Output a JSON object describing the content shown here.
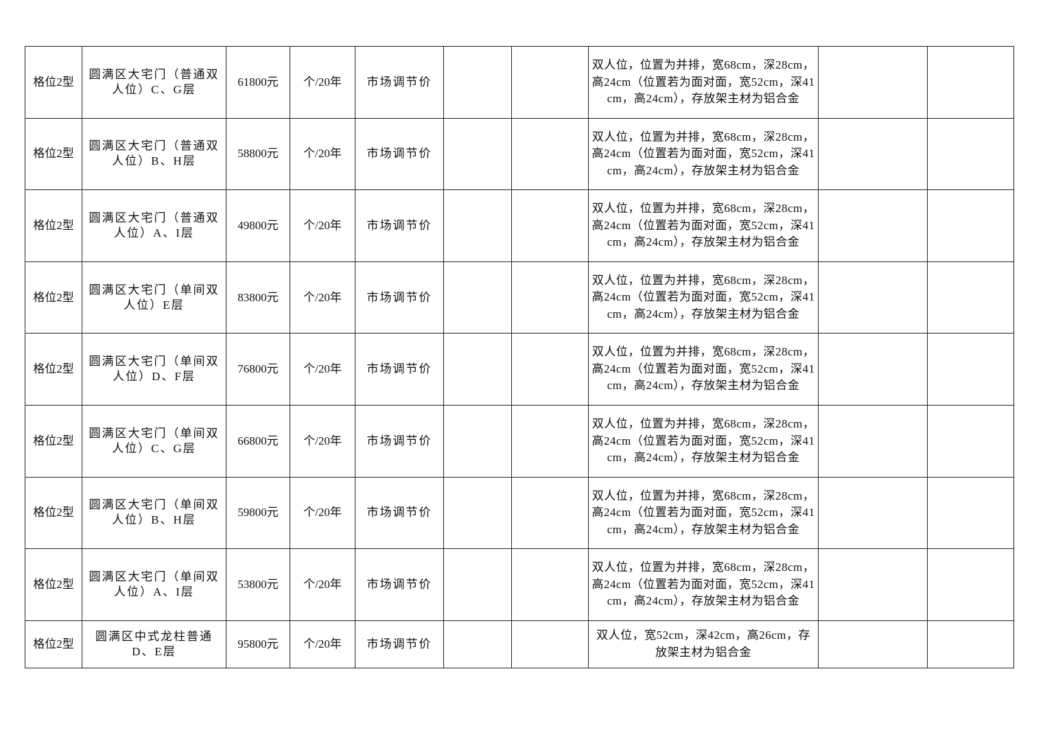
{
  "table": {
    "rows": [
      {
        "type": "格位2型",
        "name": "圆满区大宅门（普通双人位）C、G层",
        "price": "61800元",
        "unit": "个/20年",
        "pricing": "市场调节价",
        "c6": "",
        "c7": "",
        "desc": "双人位，位置为并排，宽68cm，深28cm，高24cm（位置若为面对面，宽52cm，深41cm，高24cm），存放架主材为铝合金",
        "c9": "",
        "c10": ""
      },
      {
        "type": "格位2型",
        "name": "圆满区大宅门（普通双人位）B、H层",
        "price": "58800元",
        "unit": "个/20年",
        "pricing": "市场调节价",
        "c6": "",
        "c7": "",
        "desc": "双人位，位置为并排，宽68cm，深28cm，高24cm（位置若为面对面，宽52cm，深41cm，高24cm），存放架主材为铝合金",
        "c9": "",
        "c10": ""
      },
      {
        "type": "格位2型",
        "name": "圆满区大宅门（普通双人位）A、I层",
        "price": "49800元",
        "unit": "个/20年",
        "pricing": "市场调节价",
        "c6": "",
        "c7": "",
        "desc": "双人位，位置为并排，宽68cm，深28cm，高24cm（位置若为面对面，宽52cm，深41cm，高24cm），存放架主材为铝合金",
        "c9": "",
        "c10": ""
      },
      {
        "type": "格位2型",
        "name": "圆满区大宅门（单间双人位）E层",
        "price": "83800元",
        "unit": "个/20年",
        "pricing": "市场调节价",
        "c6": "",
        "c7": "",
        "desc": "双人位，位置为并排，宽68cm，深28cm，高24cm（位置若为面对面，宽52cm，深41cm，高24cm），存放架主材为铝合金",
        "c9": "",
        "c10": ""
      },
      {
        "type": "格位2型",
        "name": "圆满区大宅门（单间双人位）D、F层",
        "price": "76800元",
        "unit": "个/20年",
        "pricing": "市场调节价",
        "c6": "",
        "c7": "",
        "desc": "双人位，位置为并排，宽68cm，深28cm，高24cm（位置若为面对面，宽52cm，深41cm，高24cm），存放架主材为铝合金",
        "c9": "",
        "c10": ""
      },
      {
        "type": "格位2型",
        "name": "圆满区大宅门（单间双人位）C、G层",
        "price": "66800元",
        "unit": "个/20年",
        "pricing": "市场调节价",
        "c6": "",
        "c7": "",
        "desc": "双人位，位置为并排，宽68cm，深28cm，高24cm（位置若为面对面，宽52cm，深41cm，高24cm），存放架主材为铝合金",
        "c9": "",
        "c10": ""
      },
      {
        "type": "格位2型",
        "name": "圆满区大宅门（单间双人位）B、H层",
        "price": "59800元",
        "unit": "个/20年",
        "pricing": "市场调节价",
        "c6": "",
        "c7": "",
        "desc": "双人位，位置为并排，宽68cm，深28cm，高24cm（位置若为面对面，宽52cm，深41cm，高24cm），存放架主材为铝合金",
        "c9": "",
        "c10": ""
      },
      {
        "type": "格位2型",
        "name": "圆满区大宅门（单间双人位）A、I层",
        "price": "53800元",
        "unit": "个/20年",
        "pricing": "市场调节价",
        "c6": "",
        "c7": "",
        "desc": "双人位，位置为并排，宽68cm，深28cm，高24cm（位置若为面对面，宽52cm，深41cm，高24cm），存放架主材为铝合金",
        "c9": "",
        "c10": ""
      },
      {
        "type": "格位2型",
        "name": "圆满区中式龙柱普通D、E层",
        "price": "95800元",
        "unit": "个/20年",
        "pricing": "市场调节价",
        "c6": "",
        "c7": "",
        "desc": "双人位，宽52cm，深42cm，高26cm，存放架主材为铝合金",
        "c9": "",
        "c10": ""
      }
    ]
  }
}
